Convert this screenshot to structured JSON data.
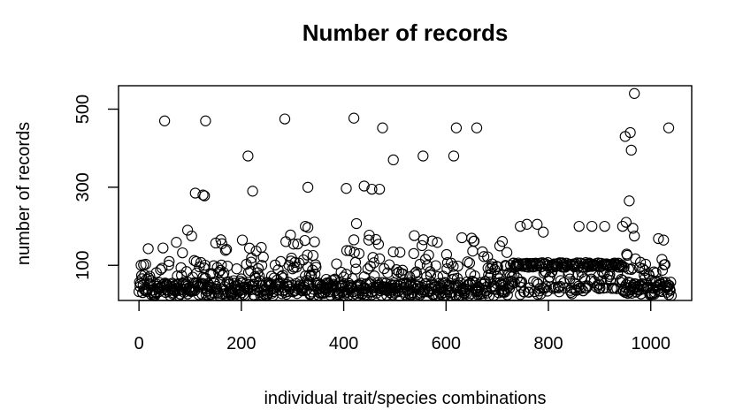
{
  "chart_data": {
    "type": "scatter",
    "title": "Number of records",
    "xlabel": "individual trait/species combinations",
    "ylabel": "number of records",
    "xlim": [
      -40,
      1080
    ],
    "ylim": [
      10,
      560
    ],
    "x_ticks": [
      0,
      200,
      400,
      600,
      800,
      1000
    ],
    "y_ticks": [
      100,
      300,
      500
    ],
    "grid": false,
    "marker": "open-circle",
    "notable_points": [
      {
        "x": 50,
        "y": 470
      },
      {
        "x": 130,
        "y": 470
      },
      {
        "x": 285,
        "y": 475
      },
      {
        "x": 420,
        "y": 477
      },
      {
        "x": 476,
        "y": 452
      },
      {
        "x": 620,
        "y": 452
      },
      {
        "x": 660,
        "y": 452
      },
      {
        "x": 1035,
        "y": 452
      },
      {
        "x": 968,
        "y": 540
      },
      {
        "x": 960,
        "y": 440
      },
      {
        "x": 950,
        "y": 430
      },
      {
        "x": 962,
        "y": 395
      },
      {
        "x": 213,
        "y": 380
      },
      {
        "x": 555,
        "y": 380
      },
      {
        "x": 615,
        "y": 380
      },
      {
        "x": 497,
        "y": 370
      },
      {
        "x": 110,
        "y": 285
      },
      {
        "x": 125,
        "y": 280
      },
      {
        "x": 128,
        "y": 278
      },
      {
        "x": 222,
        "y": 290
      },
      {
        "x": 330,
        "y": 300
      },
      {
        "x": 405,
        "y": 297
      },
      {
        "x": 440,
        "y": 303
      },
      {
        "x": 455,
        "y": 295
      },
      {
        "x": 470,
        "y": 295
      },
      {
        "x": 958,
        "y": 265
      },
      {
        "x": 425,
        "y": 207
      },
      {
        "x": 325,
        "y": 200
      },
      {
        "x": 330,
        "y": 197
      },
      {
        "x": 95,
        "y": 190
      },
      {
        "x": 745,
        "y": 200
      },
      {
        "x": 758,
        "y": 205
      },
      {
        "x": 778,
        "y": 205
      },
      {
        "x": 790,
        "y": 185
      },
      {
        "x": 860,
        "y": 200
      },
      {
        "x": 885,
        "y": 200
      },
      {
        "x": 910,
        "y": 200
      },
      {
        "x": 945,
        "y": 200
      },
      {
        "x": 952,
        "y": 210
      },
      {
        "x": 965,
        "y": 195
      },
      {
        "x": 968,
        "y": 175
      }
    ]
  }
}
